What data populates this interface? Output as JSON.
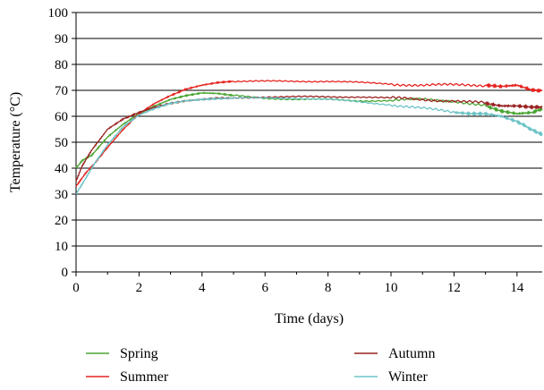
{
  "chart_data": {
    "type": "line",
    "title": "",
    "xlabel": "Time (days)",
    "ylabel": "Temperature (°C)",
    "xlim": [
      0,
      14.8
    ],
    "ylim": [
      0,
      100
    ],
    "x_ticks": [
      0,
      2,
      4,
      6,
      8,
      10,
      12,
      14
    ],
    "y_ticks": [
      0,
      10,
      20,
      30,
      40,
      50,
      60,
      70,
      80,
      90,
      100
    ],
    "grid": "horizontal",
    "legend_placement": "bottom",
    "series": [
      {
        "name": "Spring",
        "color": "#4aa532",
        "x": [
          0,
          0.2,
          0.5,
          1,
          1.5,
          2,
          2.5,
          3,
          3.5,
          4,
          4.5,
          5,
          6,
          7,
          8,
          9,
          10,
          11,
          12,
          13,
          13.5,
          14,
          14.5,
          14.8
        ],
        "y": [
          40,
          43,
          45,
          52,
          57,
          61,
          64,
          66.5,
          68,
          69,
          68.8,
          68,
          67,
          66.5,
          66.5,
          66,
          66,
          66.5,
          66,
          64,
          62,
          61,
          61.5,
          63
        ]
      },
      {
        "name": "Summer",
        "color": "#e52420",
        "x": [
          0,
          0.3,
          0.6,
          1,
          1.5,
          2,
          2.5,
          3,
          3.5,
          4,
          4.5,
          5,
          6,
          7,
          8,
          9,
          10,
          11,
          12,
          13,
          13.5,
          14,
          14.5,
          14.8
        ],
        "y": [
          33,
          38,
          42,
          48,
          55,
          61,
          65,
          68,
          70.5,
          72,
          73,
          73.5,
          73.5,
          73.5,
          73.5,
          73,
          72.5,
          72,
          72,
          72,
          71.5,
          72,
          70,
          70
        ]
      },
      {
        "name": "Autumn",
        "color": "#992222",
        "x": [
          0,
          0.2,
          0.5,
          1,
          1.5,
          2,
          2.5,
          3,
          3.5,
          4,
          4.5,
          5,
          6,
          7,
          8,
          9,
          10,
          11,
          12,
          13,
          13.5,
          14,
          14.5,
          14.8
        ],
        "y": [
          35,
          41,
          47,
          55,
          59,
          61.5,
          63.5,
          65,
          66,
          66.5,
          67,
          67,
          67.5,
          67.5,
          67.5,
          67.5,
          67,
          66.5,
          66,
          65,
          64,
          64,
          63.5,
          63.5
        ]
      },
      {
        "name": "Winter",
        "color": "#6cc3c6",
        "x": [
          0,
          0.3,
          0.6,
          1,
          1.5,
          2,
          2.5,
          3,
          3.5,
          4,
          4.5,
          5,
          6,
          7,
          8,
          9,
          10,
          11,
          12,
          12.5,
          13,
          13.5,
          14,
          14.3,
          14.6,
          14.8
        ],
        "y": [
          30,
          36,
          42,
          49,
          56,
          60.5,
          63,
          65,
          66,
          66.5,
          66.8,
          67,
          67,
          67,
          66.5,
          65.5,
          64.5,
          63,
          61.5,
          61,
          61,
          60,
          58,
          56,
          54,
          53
        ]
      }
    ]
  },
  "legend": {
    "items": [
      {
        "label": "Spring",
        "color": "#4aa532"
      },
      {
        "label": "Summer",
        "color": "#e52420"
      },
      {
        "label": "Autumn",
        "color": "#992222"
      },
      {
        "label": "Winter",
        "color": "#6cc3c6"
      }
    ]
  }
}
